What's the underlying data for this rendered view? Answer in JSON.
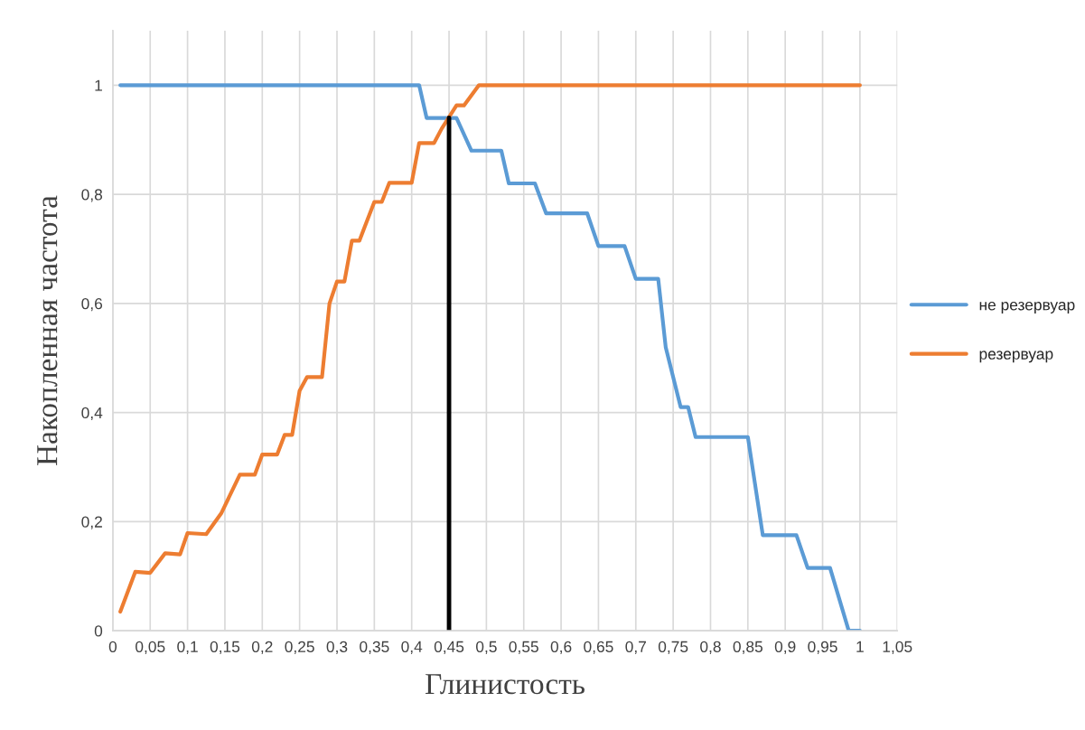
{
  "chart_data": {
    "type": "line",
    "xlabel": "Глинистость",
    "ylabel": "Накопленная частота",
    "xlim": [
      0,
      1.05
    ],
    "ylim": [
      0,
      1.1
    ],
    "xticks": [
      0,
      {
        "value": 0.05,
        "label": "0,05"
      },
      {
        "value": 0.1,
        "label": "0,1"
      },
      {
        "value": 0.15,
        "label": "0,15"
      },
      {
        "value": 0.2,
        "label": "0,2"
      },
      {
        "value": 0.25,
        "label": "0,25"
      },
      {
        "value": 0.3,
        "label": "0,3"
      },
      {
        "value": 0.35,
        "label": "0,35"
      },
      {
        "value": 0.4,
        "label": "0,4"
      },
      {
        "value": 0.45,
        "label": "0,45"
      },
      {
        "value": 0.5,
        "label": "0,5"
      },
      {
        "value": 0.55,
        "label": "0,55"
      },
      {
        "value": 0.6,
        "label": "0,6"
      },
      {
        "value": 0.65,
        "label": "0,65"
      },
      {
        "value": 0.7,
        "label": "0,7"
      },
      {
        "value": 0.75,
        "label": "0,75"
      },
      {
        "value": 0.8,
        "label": "0,8"
      },
      {
        "value": 0.85,
        "label": "0,85"
      },
      {
        "value": 0.9,
        "label": "0,9"
      },
      {
        "value": 0.95,
        "label": "0,95"
      },
      1,
      {
        "value": 1.05,
        "label": "1,05"
      }
    ],
    "yticks": [
      0,
      {
        "value": 0.2,
        "label": "0,2"
      },
      {
        "value": 0.4,
        "label": "0,4"
      },
      {
        "value": 0.6,
        "label": "0,6"
      },
      {
        "value": 0.8,
        "label": "0,8"
      },
      1
    ],
    "grid": true,
    "legend": "right",
    "marker": "none",
    "line_style": "solid",
    "series": [
      {
        "name": "не резервуар",
        "color": "#5b9bd5",
        "x": [
          0.01,
          0.41,
          0.42,
          0.46,
          0.48,
          0.52,
          0.53,
          0.565,
          0.58,
          0.635,
          0.65,
          0.685,
          0.7,
          0.73,
          0.74,
          0.76,
          0.77,
          0.78,
          0.85,
          0.87,
          0.915,
          0.93,
          0.96,
          0.985,
          1.0
        ],
        "values": [
          1,
          1,
          0.94,
          0.94,
          0.88,
          0.88,
          0.82,
          0.82,
          0.765,
          0.765,
          0.705,
          0.705,
          0.645,
          0.645,
          0.52,
          0.41,
          0.41,
          0.355,
          0.355,
          0.175,
          0.175,
          0.115,
          0.115,
          0,
          0
        ]
      },
      {
        "name": "резервуар",
        "color": "#ed7d31",
        "x": [
          0.01,
          0.03,
          0.05,
          0.07,
          0.09,
          0.1,
          0.125,
          0.145,
          0.17,
          0.19,
          0.2,
          0.22,
          0.23,
          0.24,
          0.25,
          0.26,
          0.28,
          0.29,
          0.3,
          0.31,
          0.32,
          0.33,
          0.35,
          0.36,
          0.37,
          0.4,
          0.41,
          0.43,
          0.44,
          0.46,
          0.47,
          0.49,
          1.0
        ],
        "values": [
          0.035,
          0.108,
          0.106,
          0.142,
          0.14,
          0.179,
          0.177,
          0.215,
          0.286,
          0.286,
          0.323,
          0.323,
          0.359,
          0.359,
          0.44,
          0.465,
          0.465,
          0.6,
          0.64,
          0.64,
          0.715,
          0.715,
          0.786,
          0.786,
          0.821,
          0.821,
          0.894,
          0.894,
          0.92,
          0.963,
          0.963,
          1,
          1
        ]
      },
      {
        "color": "#000000",
        "x": [
          0.45,
          0.45
        ],
        "values": [
          0,
          0.94
        ]
      }
    ]
  }
}
